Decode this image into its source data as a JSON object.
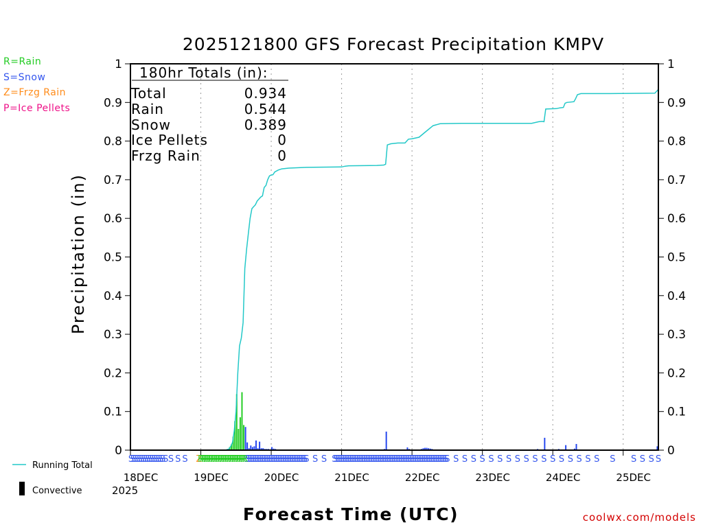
{
  "chart_data": {
    "type": "bar+line",
    "title": "2025121800 GFS Forecast Precipitation KMPV",
    "xlabel": "Forecast Time (UTC)",
    "ylabel": "Precipitation (in)",
    "ylim": [
      0,
      1
    ],
    "xlim_hours": [
      0,
      150
    ],
    "y_ticks": [
      "0",
      "0.1",
      "0.2",
      "0.3",
      "0.4",
      "0.5",
      "0.6",
      "0.7",
      "0.8",
      "0.9",
      "1"
    ],
    "x_ticks": [
      {
        "hour": 0,
        "label": "18DEC"
      },
      {
        "hour": 20,
        "label": "19DEC"
      },
      {
        "hour": 40,
        "label": "20DEC"
      },
      {
        "hour": 60,
        "label": "21DEC"
      },
      {
        "hour": 80,
        "label": "22DEC"
      },
      {
        "hour": 100,
        "label": "23DEC"
      },
      {
        "hour": 120,
        "label": "24DEC"
      },
      {
        "hour": 140,
        "label": "25DEC"
      }
    ],
    "x_year_label": "2025",
    "type_legend": [
      {
        "label": "R=Rain",
        "color": "#22cc22"
      },
      {
        "label": "S=Snow",
        "color": "#3355ee"
      },
      {
        "label": "Z=Frzg Rain",
        "color": "#ff8c1a"
      },
      {
        "label": "P=Ice Pellets",
        "color": "#ee1188"
      }
    ],
    "series_legend": [
      {
        "label": "Running Total",
        "color": "#22c8c8"
      },
      {
        "label": "Convective",
        "color": "#000000"
      }
    ],
    "totals": {
      "heading": "180hr Totals (in):",
      "rows": [
        {
          "label": "Total",
          "value": "0.934"
        },
        {
          "label": "Rain",
          "value": "0.544"
        },
        {
          "label": "Snow",
          "value": "0.389"
        },
        {
          "label": "Ice Pellets",
          "value": "0"
        },
        {
          "label": "Frzg Rain",
          "value": "0"
        }
      ]
    },
    "running_total": [
      [
        0,
        0
      ],
      [
        27,
        0
      ],
      [
        28,
        0.003
      ],
      [
        28.5,
        0.01
      ],
      [
        29,
        0.02
      ],
      [
        29.5,
        0.05
      ],
      [
        30,
        0.1
      ],
      [
        30.5,
        0.2
      ],
      [
        31,
        0.27
      ],
      [
        31.5,
        0.29
      ],
      [
        32,
        0.33
      ],
      [
        32.5,
        0.47
      ],
      [
        33,
        0.52
      ],
      [
        33.5,
        0.56
      ],
      [
        34,
        0.6
      ],
      [
        34.5,
        0.625
      ],
      [
        35,
        0.63
      ],
      [
        35.5,
        0.635
      ],
      [
        36,
        0.645
      ],
      [
        36.5,
        0.65
      ],
      [
        37,
        0.655
      ],
      [
        37.5,
        0.658
      ],
      [
        38,
        0.68
      ],
      [
        38.5,
        0.685
      ],
      [
        39,
        0.7
      ],
      [
        39.5,
        0.71
      ],
      [
        40,
        0.712
      ],
      [
        40.5,
        0.713
      ],
      [
        41,
        0.72
      ],
      [
        42,
        0.725
      ],
      [
        43,
        0.728
      ],
      [
        45,
        0.73
      ],
      [
        50,
        0.732
      ],
      [
        60,
        0.733
      ],
      [
        61,
        0.735
      ],
      [
        62,
        0.736
      ],
      [
        70,
        0.737
      ],
      [
        72,
        0.738
      ],
      [
        72.5,
        0.74
      ],
      [
        73,
        0.79
      ],
      [
        74,
        0.793
      ],
      [
        76,
        0.795
      ],
      [
        78,
        0.795
      ],
      [
        78.5,
        0.8
      ],
      [
        79,
        0.805
      ],
      [
        80,
        0.806
      ],
      [
        82,
        0.81
      ],
      [
        84,
        0.825
      ],
      [
        86,
        0.84
      ],
      [
        88,
        0.845
      ],
      [
        94,
        0.846
      ],
      [
        104,
        0.846
      ],
      [
        114,
        0.846
      ],
      [
        116,
        0.85
      ],
      [
        117,
        0.851
      ],
      [
        117.5,
        0.85
      ],
      [
        118,
        0.883
      ],
      [
        121,
        0.884
      ],
      [
        122,
        0.886
      ],
      [
        123,
        0.887
      ],
      [
        123.5,
        0.898
      ],
      [
        124,
        0.9
      ],
      [
        126,
        0.902
      ],
      [
        126.5,
        0.91
      ],
      [
        127,
        0.92
      ],
      [
        128,
        0.923
      ],
      [
        135,
        0.923
      ],
      [
        149,
        0.924
      ],
      [
        150,
        0.934
      ]
    ],
    "bars": [
      {
        "hour": 28,
        "value": 0.003,
        "type": "rain"
      },
      {
        "hour": 28.5,
        "value": 0.008,
        "type": "rain"
      },
      {
        "hour": 29,
        "value": 0.015,
        "type": "rain"
      },
      {
        "hour": 29.5,
        "value": 0.035,
        "type": "rain"
      },
      {
        "hour": 30,
        "value": 0.075,
        "type": "rain"
      },
      {
        "hour": 30.5,
        "value": 0.145,
        "type": "rain"
      },
      {
        "hour": 31,
        "value": 0.055,
        "type": "rain"
      },
      {
        "hour": 31.5,
        "value": 0.085,
        "type": "rain"
      },
      {
        "hour": 32,
        "value": 0.15,
        "type": "rain"
      },
      {
        "hour": 32.5,
        "value": 0.065,
        "type": "rain"
      },
      {
        "hour": 33,
        "value": 0.06,
        "type": "snow"
      },
      {
        "hour": 33.5,
        "value": 0.02,
        "type": "snow"
      },
      {
        "hour": 34,
        "value": 0.005,
        "type": "snow"
      },
      {
        "hour": 34.5,
        "value": 0.012,
        "type": "snow"
      },
      {
        "hour": 35,
        "value": 0.008,
        "type": "snow"
      },
      {
        "hour": 35.5,
        "value": 0.01,
        "type": "snow"
      },
      {
        "hour": 36,
        "value": 0.025,
        "type": "snow"
      },
      {
        "hour": 36.5,
        "value": 0.005,
        "type": "snow"
      },
      {
        "hour": 37,
        "value": 0.022,
        "type": "snow"
      },
      {
        "hour": 37.5,
        "value": 0.005,
        "type": "snow"
      },
      {
        "hour": 38,
        "value": 0.005,
        "type": "snow"
      },
      {
        "hour": 38.5,
        "value": 0.003,
        "type": "snow"
      },
      {
        "hour": 39,
        "value": 0.003,
        "type": "snow"
      },
      {
        "hour": 39.5,
        "value": 0.003,
        "type": "snow"
      },
      {
        "hour": 40,
        "value": 0.002,
        "type": "snow"
      },
      {
        "hour": 40.5,
        "value": 0.008,
        "type": "snow"
      },
      {
        "hour": 41,
        "value": 0.004,
        "type": "snow"
      },
      {
        "hour": 41.5,
        "value": 0.003,
        "type": "snow"
      },
      {
        "hour": 72.5,
        "value": 0.003,
        "type": "snow"
      },
      {
        "hour": 73,
        "value": 0.048,
        "type": "snow"
      },
      {
        "hour": 79,
        "value": 0.007,
        "type": "snow"
      },
      {
        "hour": 79.5,
        "value": 0.003,
        "type": "snow"
      },
      {
        "hour": 83,
        "value": 0.003,
        "type": "snow"
      },
      {
        "hour": 83.5,
        "value": 0.005,
        "type": "snow"
      },
      {
        "hour": 84,
        "value": 0.006,
        "type": "snow"
      },
      {
        "hour": 84.5,
        "value": 0.006,
        "type": "snow"
      },
      {
        "hour": 85,
        "value": 0.005,
        "type": "snow"
      },
      {
        "hour": 85.5,
        "value": 0.004,
        "type": "snow"
      },
      {
        "hour": 86,
        "value": 0.003,
        "type": "snow"
      },
      {
        "hour": 116,
        "value": 0.003,
        "type": "snow"
      },
      {
        "hour": 118,
        "value": 0.032,
        "type": "snow"
      },
      {
        "hour": 122,
        "value": 0.003,
        "type": "snow"
      },
      {
        "hour": 124,
        "value": 0.013,
        "type": "snow"
      },
      {
        "hour": 126.5,
        "value": 0.004,
        "type": "snow"
      },
      {
        "hour": 127,
        "value": 0.016,
        "type": "snow"
      },
      {
        "hour": 150,
        "value": 0.01,
        "type": "snow"
      }
    ],
    "type_markers": {
      "snow": [
        0.2,
        0.8,
        1.4,
        2.0,
        2.6,
        3.2,
        3.8,
        4.4,
        5.0,
        5.6,
        6.2,
        6.8,
        7.4,
        8.0,
        8.6,
        9.2,
        10,
        11.5,
        13.5,
        15.5,
        33,
        33.5,
        34,
        34.5,
        35,
        35.5,
        36,
        36.5,
        37,
        37.5,
        38,
        38.5,
        39,
        39.5,
        40,
        40.5,
        41,
        41.5,
        42,
        42.5,
        43,
        43.5,
        44,
        44.5,
        45,
        45.5,
        46,
        46.5,
        47,
        47.5,
        48,
        48.5,
        49,
        49.5,
        50,
        52.5,
        55,
        58,
        58.5,
        59,
        59.5,
        60,
        60.5,
        61,
        61.5,
        62,
        62.5,
        63,
        63.5,
        64,
        64.5,
        65,
        65.5,
        66,
        66.5,
        67,
        67.5,
        68,
        68.5,
        69,
        69.5,
        70,
        70.5,
        71,
        71.5,
        72,
        72.5,
        73,
        73.5,
        74,
        74.5,
        75,
        75.5,
        76,
        76.5,
        77,
        77.5,
        78,
        78.5,
        79,
        79.5,
        80,
        80.5,
        81,
        81.5,
        82,
        82.5,
        83,
        83.5,
        84,
        84.5,
        85,
        85.5,
        86,
        86.5,
        87,
        87.5,
        88,
        88.5,
        89,
        89.5,
        90,
        92.5,
        95,
        97.5,
        100,
        102.5,
        105,
        107.5,
        110,
        112.5,
        115,
        117.5,
        120,
        122.5,
        125,
        127.5,
        130,
        132.5,
        137,
        143,
        145.5,
        148,
        150
      ],
      "frzg": [
        19.5
      ],
      "rain": [
        20,
        20.5,
        21,
        21.5,
        22,
        22.5,
        23,
        23.5,
        24,
        24.5,
        25,
        25.5,
        26,
        26.5,
        27,
        27.5,
        28,
        28.5,
        29,
        29.5,
        30,
        30.5,
        31,
        31.5,
        32,
        32.5
      ]
    },
    "credit": "coolwx.com/models"
  }
}
